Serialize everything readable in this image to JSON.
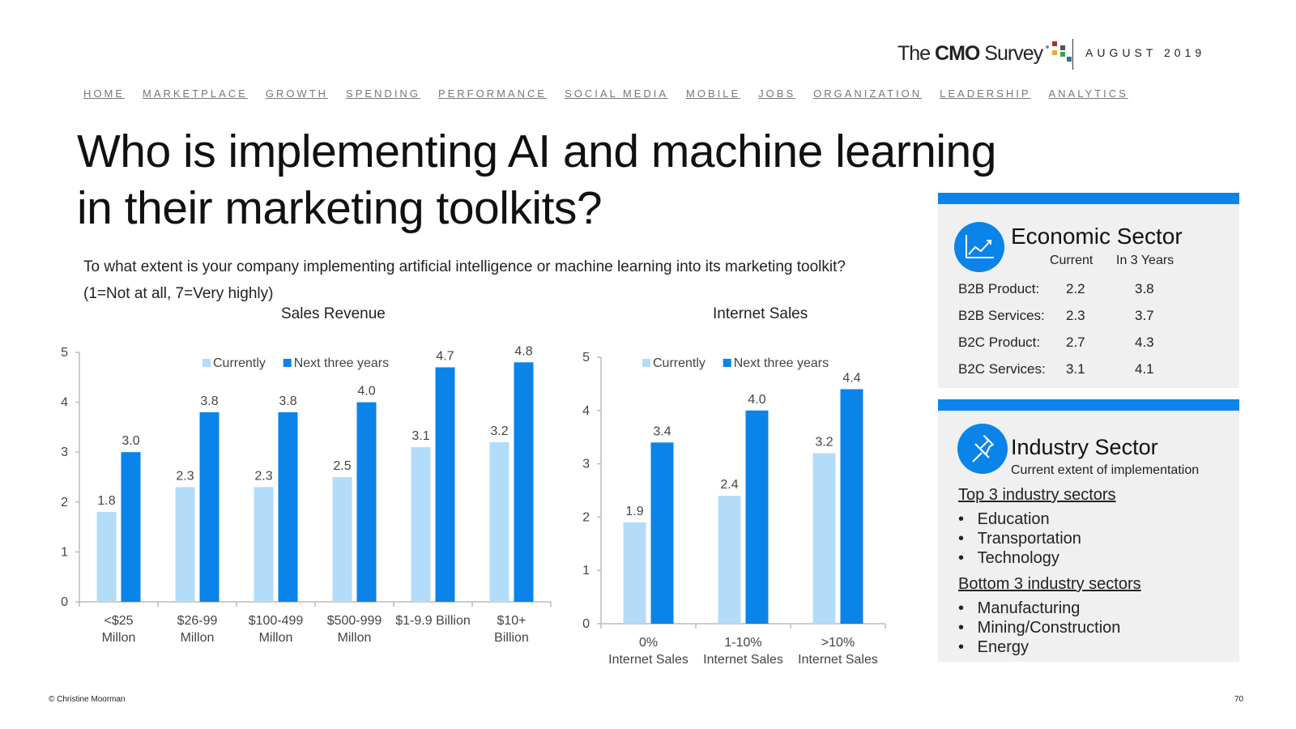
{
  "header": {
    "logo": {
      "pre": "The ",
      "bold": "CMO",
      "post": " Survey"
    },
    "date": "AUGUST 2019"
  },
  "nav": [
    "HOME",
    "MARKETPLACE",
    "GROWTH",
    "SPENDING",
    "PERFORMANCE",
    "SOCIAL MEDIA",
    "MOBILE",
    "JOBS",
    "ORGANIZATION",
    "LEADERSHIP",
    "ANALYTICS"
  ],
  "title": "Who is implementing AI and machine learning in their marketing toolkits?",
  "question": {
    "line1": "To what extent is your company implementing artificial intelligence or machine learning into its marketing toolkit?",
    "line2": "(1=Not at all, 7=Very highly)"
  },
  "colors": {
    "current": "#b3dcf8",
    "next": "#0a84e8",
    "accent": "#0a84e8",
    "panel_bg": "#f0f0f0"
  },
  "chart_data": [
    {
      "type": "bar",
      "title": "Sales Revenue",
      "categories": [
        [
          "<$25",
          "Millon"
        ],
        [
          "$26-99",
          "Millon"
        ],
        [
          "$100-499",
          "Millon"
        ],
        [
          "$500-999",
          "Millon"
        ],
        [
          "$1-9.9 Billion"
        ],
        [
          "$10+",
          "Billion"
        ]
      ],
      "series": [
        {
          "name": "Currently",
          "values": [
            1.8,
            2.3,
            2.3,
            2.5,
            3.1,
            3.2
          ]
        },
        {
          "name": "Next three years",
          "values": [
            3.0,
            3.8,
            3.8,
            4.0,
            4.7,
            4.8
          ]
        }
      ],
      "ylim": [
        0,
        5
      ],
      "yticks": [
        0,
        1,
        2,
        3,
        4,
        5
      ],
      "legend": "top"
    },
    {
      "type": "bar",
      "title": "Internet Sales",
      "categories": [
        [
          "0%",
          "Internet Sales"
        ],
        [
          "1-10%",
          "Internet Sales"
        ],
        [
          ">10%",
          "Internet Sales"
        ]
      ],
      "series": [
        {
          "name": "Currently",
          "values": [
            1.9,
            2.4,
            3.2
          ]
        },
        {
          "name": "Next three years",
          "values": [
            3.4,
            4.0,
            4.4
          ]
        }
      ],
      "ylim": [
        0,
        5
      ],
      "yticks": [
        0,
        1,
        2,
        3,
        4,
        5
      ],
      "legend": "top"
    }
  ],
  "economic": {
    "icon": "line-chart-icon",
    "title": "Economic Sector",
    "col_current": "Current",
    "col_future": "In 3 Years",
    "rows": [
      {
        "label": "B2B Product:",
        "current": "2.2",
        "future": "3.8"
      },
      {
        "label": "B2B Services:",
        "current": "2.3",
        "future": "3.7"
      },
      {
        "label": "B2C Product:",
        "current": "2.7",
        "future": "4.3"
      },
      {
        "label": "B2C Services:",
        "current": "3.1",
        "future": "4.1"
      }
    ]
  },
  "industry": {
    "icon": "pushpin-icon",
    "title": "Industry Sector",
    "subtitle": "Current extent of implementation",
    "top_heading": "Top 3 industry sectors",
    "top": [
      "Education",
      "Transportation",
      "Technology"
    ],
    "bottom_heading": "Bottom 3 industry sectors",
    "bottom": [
      "Manufacturing",
      "Mining/Construction",
      "Energy"
    ]
  },
  "footer": {
    "copyright": "© Christine Moorman",
    "page": "70"
  }
}
